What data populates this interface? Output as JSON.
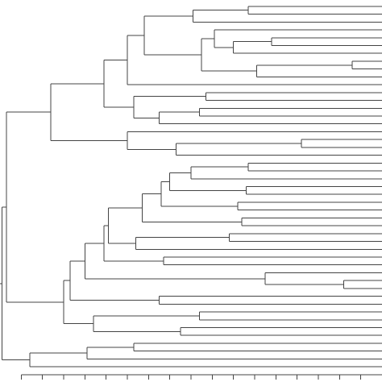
{
  "chart_data": {
    "type": "dendrogram",
    "color": "#444444",
    "xlim": [
      0,
      18
    ],
    "xticks": [
      1,
      2,
      3,
      4,
      5,
      6,
      7,
      8,
      9,
      10,
      11,
      12,
      13,
      14,
      15,
      16,
      17
    ],
    "tree": {
      "height": 0.1,
      "children": [
        {
          "height": 0.3,
          "children": [
            {
              "height": 2.4,
              "children": [
                {
                  "height": 4.9,
                  "children": [
                    {
                      "height": 6.0,
                      "children": [
                        {
                          "height": 6.8,
                          "children": [
                            {
                              "height": 9.1,
                              "children": [
                                {
                                  "height": 11.7,
                                  "children": [
                                    null,
                                    null
                                  ]
                                },
                                null
                              ]
                            },
                            {
                              "height": 9.5,
                              "children": [
                                {
                                  "height": 10.1,
                                  "children": [
                                    null,
                                    {
                                      "height": 11.0,
                                      "children": [
                                        {
                                          "height": 12.8,
                                          "children": [
                                            null,
                                            null
                                          ]
                                        },
                                        null
                                      ]
                                    }
                                  ]
                                },
                                {
                                  "height": 12.1,
                                  "children": [
                                    {
                                      "height": 16.6,
                                      "children": [
                                        null,
                                        null
                                      ]
                                    },
                                    null
                                  ]
                                }
                              ]
                            }
                          ]
                        },
                        null
                      ]
                    },
                    {
                      "height": 6.3,
                      "children": [
                        {
                          "height": 9.7,
                          "children": [
                            null,
                            null
                          ]
                        },
                        {
                          "height": 7.5,
                          "children": [
                            {
                              "height": 9.4,
                              "children": [
                                null,
                                null
                              ]
                            },
                            null
                          ]
                        }
                      ]
                    }
                  ]
                },
                {
                  "height": 6.0,
                  "children": [
                    null,
                    {
                      "height": 8.3,
                      "children": [
                        {
                          "height": 14.2,
                          "children": [
                            null,
                            null
                          ]
                        },
                        null
                      ]
                    }
                  ]
                }
              ]
            },
            {
              "height": 3.0,
              "children": [
                {
                  "height": 3.3,
                  "children": [
                    {
                      "height": 4.0,
                      "children": [
                        {
                          "height": 4.9,
                          "children": [
                            {
                              "height": 5.1,
                              "children": [
                                {
                                  "height": 6.7,
                                  "children": [
                                    {
                                      "height": 7.6,
                                      "children": [
                                        {
                                          "height": 8.0,
                                          "children": [
                                            {
                                              "height": 9.0,
                                              "children": [
                                                {
                                                  "height": 11.7,
                                                  "children": [
                                                    null,
                                                    null
                                                  ]
                                                },
                                                null
                                              ]
                                            },
                                            {
                                              "height": 11.6,
                                              "children": [
                                                null,
                                                null
                                              ]
                                            }
                                          ]
                                        },
                                        {
                                          "height": 11.2,
                                          "children": [
                                            null,
                                            null
                                          ]
                                        }
                                      ]
                                    },
                                    {
                                      "height": 11.4,
                                      "children": [
                                        null,
                                        null
                                      ]
                                    }
                                  ]
                                },
                                {
                                  "height": 6.4,
                                  "children": [
                                    {
                                      "height": 10.8,
                                      "children": [
                                        null,
                                        null
                                      ]
                                    },
                                    null
                                  ]
                                }
                              ]
                            },
                            {
                              "height": 7.7,
                              "children": [
                                null,
                                null
                              ]
                            }
                          ]
                        },
                        {
                          "height": 12.5,
                          "children": [
                            null,
                            {
                              "height": 16.2,
                              "children": [
                                null,
                                null
                              ]
                            }
                          ]
                        }
                      ]
                    },
                    {
                      "height": 7.5,
                      "children": [
                        null,
                        null
                      ]
                    }
                  ]
                },
                {
                  "height": 4.4,
                  "children": [
                    {
                      "height": 9.4,
                      "children": [
                        null,
                        null
                      ]
                    },
                    {
                      "height": 8.5,
                      "children": [
                        null,
                        null
                      ]
                    }
                  ]
                }
              ]
            }
          ]
        },
        {
          "height": 1.4,
          "children": [
            {
              "height": 4.1,
              "children": [
                {
                  "height": 6.3,
                  "children": [
                    null,
                    null
                  ]
                },
                null
              ]
            },
            null
          ]
        }
      ]
    }
  }
}
